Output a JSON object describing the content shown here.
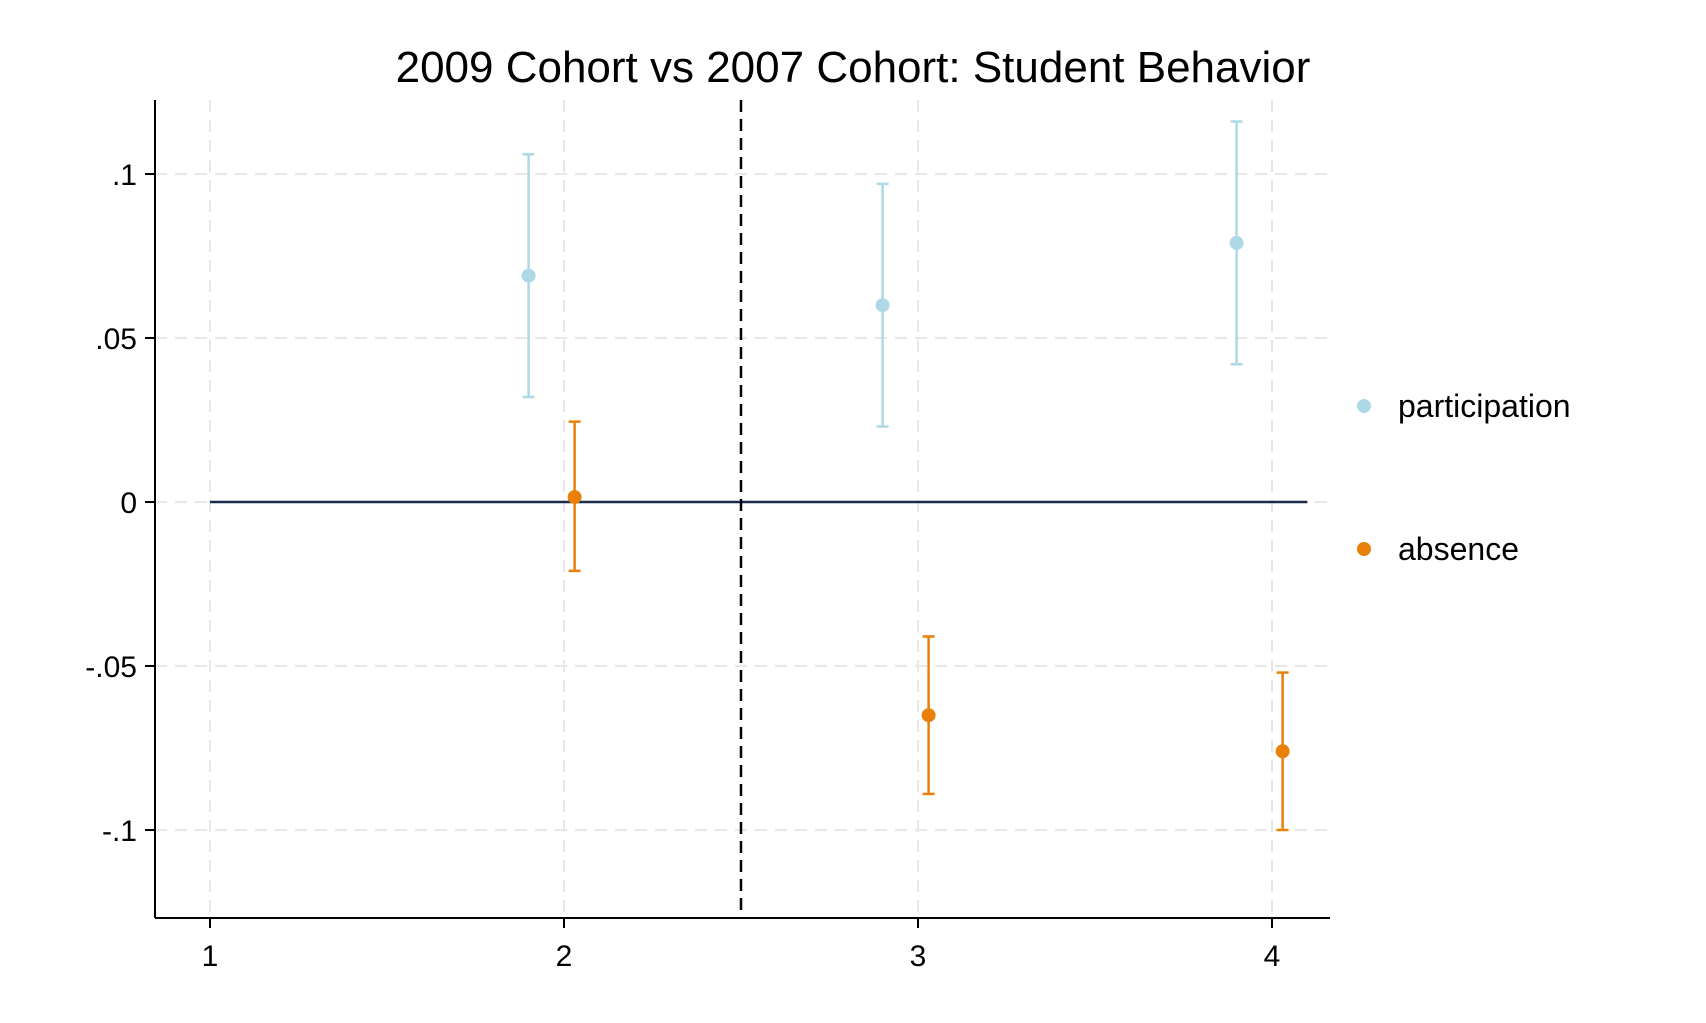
{
  "chart_data": {
    "type": "scatter",
    "title": "2009 Cohort vs 2007 Cohort: Student Behavior",
    "xlabel": "",
    "ylabel": "",
    "xlim": [
      0.85,
      4.15
    ],
    "ylim": [
      -0.1275,
      0.1225
    ],
    "xticks": [
      1,
      2,
      3,
      4
    ],
    "xtick_labels": [
      "1",
      "2",
      "3",
      "4"
    ],
    "yticks": [
      0.1,
      0.05,
      0,
      -0.05,
      -0.1
    ],
    "ytick_labels": [
      ".1",
      ".05",
      "0",
      "-.05",
      "-.1"
    ],
    "grid": true,
    "legend_position": "right",
    "reference_lines": {
      "horizontal_y": 0,
      "horizontal_x_range": [
        1,
        4.1
      ],
      "vertical_dashed_x": 2.5
    },
    "series": [
      {
        "name": "participation",
        "color": "#add8e6",
        "points": [
          {
            "x": 1.9,
            "y": 0.069,
            "lo": 0.032,
            "hi": 0.106
          },
          {
            "x": 2.9,
            "y": 0.06,
            "lo": 0.023,
            "hi": 0.097
          },
          {
            "x": 3.9,
            "y": 0.079,
            "lo": 0.042,
            "hi": 0.116
          }
        ]
      },
      {
        "name": "absence",
        "color": "#e8800a",
        "points": [
          {
            "x": 2.03,
            "y": 0.0015,
            "lo": -0.021,
            "hi": 0.0245
          },
          {
            "x": 3.03,
            "y": -0.065,
            "lo": -0.089,
            "hi": -0.041
          },
          {
            "x": 4.03,
            "y": -0.076,
            "lo": -0.1,
            "hi": -0.052
          }
        ]
      }
    ]
  }
}
